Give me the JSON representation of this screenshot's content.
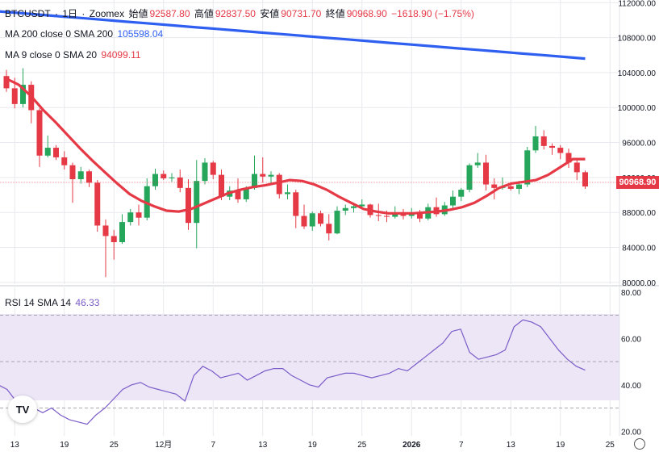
{
  "header": {
    "symbol": "BTCUSDT",
    "interval": "1日",
    "exchange": "Zoomex",
    "open_label": "始値",
    "open": "92587.80",
    "high_label": "高値",
    "high": "92837.50",
    "low_label": "安値",
    "low": "90731.70",
    "close_label": "終値",
    "close": "90968.90",
    "change": "−1618.90 (−1.75%)"
  },
  "indicators": {
    "ma200": {
      "label": "MA 200 close 0 SMA 200",
      "value": "105598.04",
      "color": "#2f5ff0"
    },
    "ma9": {
      "label": "MA 9 close 0 SMA 20",
      "value": "94099.11",
      "color": "#e53946"
    },
    "rsi": {
      "label": "RSI 14 SMA 14",
      "value": "46.33",
      "color": "#7b5cc8"
    }
  },
  "price_tag": "90968.90",
  "logo_text": "TV",
  "colors": {
    "up": "#26a65b",
    "down": "#e53946",
    "grid": "#e8e9ee",
    "rsi_band": "#ece6f7"
  },
  "chart_data": {
    "type": "candlestick",
    "price_axis": {
      "ticks": [
        80000,
        84000,
        88000,
        92000,
        96000,
        100000,
        104000,
        108000,
        112000
      ],
      "labels": [
        "80000.00",
        "84000.00",
        "88000.00",
        "92000.00",
        "96000.00",
        "100000.00",
        "104000.00",
        "108000.00",
        "112000.00"
      ],
      "range": [
        79800,
        112300
      ]
    },
    "rsi_axis": {
      "ticks": [
        20,
        40,
        60,
        80
      ],
      "labels": [
        "20.00",
        "40.00",
        "60.00",
        "80.00"
      ],
      "range": [
        18,
        82
      ],
      "band": [
        30,
        70
      ],
      "midline": 50
    },
    "x_labels": [
      "13",
      "19",
      "25",
      "12月",
      "7",
      "13",
      "19",
      "25",
      "2026",
      "7",
      "13",
      "19",
      "25"
    ],
    "x_label_days": [
      1,
      7,
      13,
      19,
      25,
      31,
      37,
      43,
      49,
      55,
      61,
      67,
      73
    ],
    "candles": [
      {
        "o": 103600,
        "h": 104300,
        "l": 101800,
        "c": 102200
      },
      {
        "o": 102200,
        "h": 103400,
        "l": 99900,
        "c": 100400
      },
      {
        "o": 100400,
        "h": 104500,
        "l": 100000,
        "c": 102600
      },
      {
        "o": 102600,
        "h": 103000,
        "l": 98200,
        "c": 99700
      },
      {
        "o": 99700,
        "h": 99900,
        "l": 93200,
        "c": 94500
      },
      {
        "o": 94500,
        "h": 96800,
        "l": 94300,
        "c": 95400
      },
      {
        "o": 95400,
        "h": 95700,
        "l": 94000,
        "c": 94300
      },
      {
        "o": 94300,
        "h": 95000,
        "l": 92900,
        "c": 93400
      },
      {
        "o": 93400,
        "h": 93700,
        "l": 89100,
        "c": 91800
      },
      {
        "o": 91800,
        "h": 93200,
        "l": 91300,
        "c": 92700
      },
      {
        "o": 92700,
        "h": 92900,
        "l": 90900,
        "c": 91400
      },
      {
        "o": 91400,
        "h": 91700,
        "l": 85800,
        "c": 86500
      },
      {
        "o": 86500,
        "h": 87200,
        "l": 80600,
        "c": 85300
      },
      {
        "o": 85300,
        "h": 86000,
        "l": 82600,
        "c": 84600
      },
      {
        "o": 84600,
        "h": 87800,
        "l": 84400,
        "c": 86900
      },
      {
        "o": 86900,
        "h": 88400,
        "l": 86500,
        "c": 88000
      },
      {
        "o": 88000,
        "h": 88900,
        "l": 86500,
        "c": 87400
      },
      {
        "o": 87400,
        "h": 91900,
        "l": 87100,
        "c": 91000
      },
      {
        "o": 91000,
        "h": 93000,
        "l": 90600,
        "c": 92400
      },
      {
        "o": 92400,
        "h": 92800,
        "l": 91700,
        "c": 91900
      },
      {
        "o": 91900,
        "h": 92500,
        "l": 91500,
        "c": 92000
      },
      {
        "o": 92000,
        "h": 92900,
        "l": 90300,
        "c": 90800
      },
      {
        "o": 90800,
        "h": 91800,
        "l": 86000,
        "c": 86800
      },
      {
        "o": 86800,
        "h": 94000,
        "l": 83900,
        "c": 91600
      },
      {
        "o": 91600,
        "h": 94200,
        "l": 91200,
        "c": 93700
      },
      {
        "o": 93700,
        "h": 93900,
        "l": 91800,
        "c": 92300
      },
      {
        "o": 92300,
        "h": 92900,
        "l": 89400,
        "c": 89800
      },
      {
        "o": 89800,
        "h": 91000,
        "l": 89400,
        "c": 90500
      },
      {
        "o": 90500,
        "h": 91900,
        "l": 89100,
        "c": 89500
      },
      {
        "o": 89500,
        "h": 91000,
        "l": 89200,
        "c": 90800
      },
      {
        "o": 90800,
        "h": 94500,
        "l": 90600,
        "c": 92400
      },
      {
        "o": 92400,
        "h": 94300,
        "l": 91400,
        "c": 92100
      },
      {
        "o": 92100,
        "h": 92700,
        "l": 91200,
        "c": 92300
      },
      {
        "o": 92300,
        "h": 92500,
        "l": 89600,
        "c": 90100
      },
      {
        "o": 90100,
        "h": 91200,
        "l": 89500,
        "c": 90300
      },
      {
        "o": 90300,
        "h": 90600,
        "l": 86200,
        "c": 87600
      },
      {
        "o": 87600,
        "h": 88900,
        "l": 86100,
        "c": 86400
      },
      {
        "o": 86400,
        "h": 88100,
        "l": 85900,
        "c": 87900
      },
      {
        "o": 87900,
        "h": 88200,
        "l": 86400,
        "c": 86700
      },
      {
        "o": 86700,
        "h": 87800,
        "l": 84800,
        "c": 85600
      },
      {
        "o": 85600,
        "h": 88700,
        "l": 85500,
        "c": 88200
      },
      {
        "o": 88200,
        "h": 88900,
        "l": 87700,
        "c": 88500
      },
      {
        "o": 88500,
        "h": 89100,
        "l": 88000,
        "c": 88700
      },
      {
        "o": 88700,
        "h": 89500,
        "l": 88400,
        "c": 88900
      },
      {
        "o": 88900,
        "h": 89000,
        "l": 87400,
        "c": 87700
      },
      {
        "o": 87700,
        "h": 89000,
        "l": 87000,
        "c": 87600
      },
      {
        "o": 87600,
        "h": 88200,
        "l": 86900,
        "c": 87500
      },
      {
        "o": 87500,
        "h": 88700,
        "l": 87300,
        "c": 87900
      },
      {
        "o": 87900,
        "h": 88400,
        "l": 87200,
        "c": 87600
      },
      {
        "o": 87600,
        "h": 88500,
        "l": 87300,
        "c": 87900
      },
      {
        "o": 87900,
        "h": 88300,
        "l": 86900,
        "c": 87300
      },
      {
        "o": 87300,
        "h": 89000,
        "l": 87100,
        "c": 88600
      },
      {
        "o": 88600,
        "h": 89700,
        "l": 87500,
        "c": 87800
      },
      {
        "o": 87800,
        "h": 89200,
        "l": 87600,
        "c": 88800
      },
      {
        "o": 88800,
        "h": 90500,
        "l": 88400,
        "c": 89800
      },
      {
        "o": 89800,
        "h": 90800,
        "l": 89300,
        "c": 90600
      },
      {
        "o": 90600,
        "h": 93600,
        "l": 90300,
        "c": 93400
      },
      {
        "o": 93400,
        "h": 94800,
        "l": 93100,
        "c": 93700
      },
      {
        "o": 93700,
        "h": 94600,
        "l": 90500,
        "c": 91200
      },
      {
        "o": 91200,
        "h": 91900,
        "l": 89500,
        "c": 90800
      },
      {
        "o": 90800,
        "h": 92000,
        "l": 90600,
        "c": 91000
      },
      {
        "o": 91000,
        "h": 91400,
        "l": 90500,
        "c": 90700
      },
      {
        "o": 90700,
        "h": 91600,
        "l": 90100,
        "c": 91200
      },
      {
        "o": 91200,
        "h": 95500,
        "l": 90900,
        "c": 95100
      },
      {
        "o": 95100,
        "h": 97900,
        "l": 94800,
        "c": 96700
      },
      {
        "o": 96700,
        "h": 97400,
        "l": 95200,
        "c": 95600
      },
      {
        "o": 95600,
        "h": 95900,
        "l": 94600,
        "c": 95400
      },
      {
        "o": 95400,
        "h": 95700,
        "l": 94100,
        "c": 94800
      },
      {
        "o": 94800,
        "h": 95300,
        "l": 93100,
        "c": 93700
      },
      {
        "o": 93700,
        "h": 94200,
        "l": 91700,
        "c": 92600
      },
      {
        "o": 92600,
        "h": 92800,
        "l": 90700,
        "c": 90969
      }
    ],
    "ma200": [
      111000,
      110800,
      110600,
      110400,
      110200,
      110000,
      109800,
      109600,
      109400,
      109200,
      109000,
      108800,
      108600,
      108400,
      108200,
      108000,
      107800,
      107600,
      107400,
      107200,
      107000,
      106800,
      106600,
      106400,
      106200,
      106000,
      105800,
      105598
    ],
    "ma9": [
      103300,
      102600,
      101300,
      99700,
      98300,
      96800,
      95300,
      93900,
      92600,
      91300,
      90100,
      89300,
      88700,
      88200,
      88100,
      88400,
      89000,
      89600,
      90200,
      90600,
      90900,
      91100,
      91400,
      91700,
      91600,
      91200,
      90600,
      89800,
      89100,
      88400,
      88100,
      87900,
      87900,
      87900,
      88000,
      88100,
      88300,
      88600,
      89100,
      89900,
      90800,
      91300,
      91500,
      91700,
      92300,
      93200,
      94100,
      94099
    ],
    "rsi": [
      40,
      38,
      33,
      31,
      30,
      28,
      30,
      27,
      25,
      24,
      23,
      27,
      30,
      34,
      38,
      40,
      41,
      39,
      38,
      37,
      36,
      33,
      44,
      48,
      46,
      43,
      44,
      45,
      42,
      44,
      46,
      47,
      47,
      44,
      42,
      40,
      39,
      43,
      44,
      45,
      45,
      44,
      43,
      44,
      45,
      47,
      46,
      49,
      52,
      55,
      58,
      63,
      64,
      54,
      51,
      52,
      53,
      55,
      65,
      68,
      67,
      65,
      60,
      55,
      51,
      48,
      46.33
    ]
  }
}
